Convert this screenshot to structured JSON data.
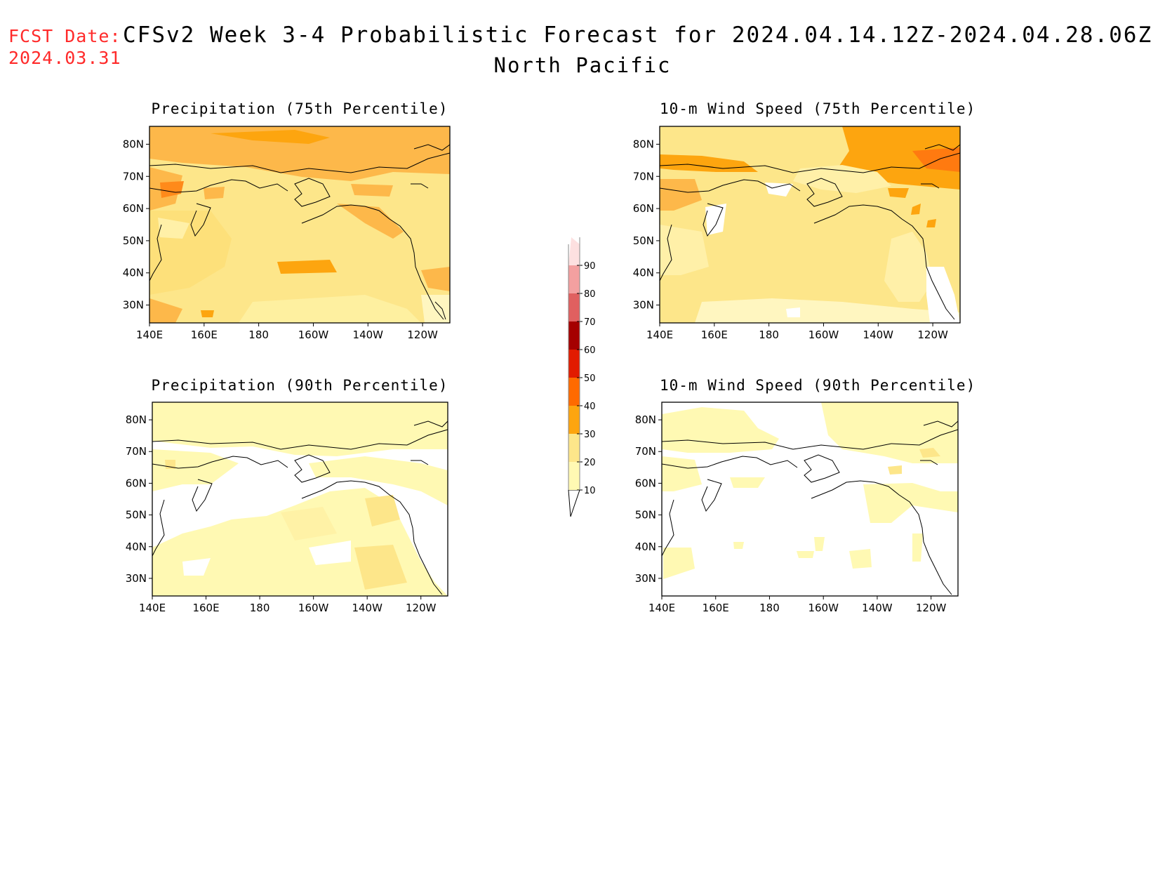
{
  "header": {
    "fcst_label": "FCST Date:",
    "fcst_date": "2024.03.31",
    "title": "CFSv2 Week 3-4 Probabilistic Forecast for 2024.04.14.12Z-2024.04.28.06Z",
    "subtitle": "North Pacific"
  },
  "panels": [
    {
      "id": "precip75",
      "title": "Precipitation (75th Percentile)"
    },
    {
      "id": "wind75",
      "title": "10-m Wind Speed (75th Percentile)"
    },
    {
      "id": "precip90",
      "title": "Precipitation (90th Percentile)"
    },
    {
      "id": "wind90",
      "title": "10-m Wind Speed (90th Percentile)"
    }
  ],
  "axes": {
    "lon_labels": [
      "140E",
      "160E",
      "180",
      "160W",
      "140W",
      "120W"
    ],
    "lat_labels": [
      "80N",
      "70N",
      "60N",
      "50N",
      "40N",
      "30N"
    ]
  },
  "colorbar": {
    "levels": [
      "10",
      "20",
      "30",
      "40",
      "50",
      "60",
      "70",
      "80",
      "90"
    ],
    "colors": [
      "#fff9b3",
      "#fde68a",
      "#fda50f",
      "#ff6a00",
      "#e21b00",
      "#a50000",
      "#e06060",
      "#f3a0a0",
      "#fde0e0"
    ]
  }
}
